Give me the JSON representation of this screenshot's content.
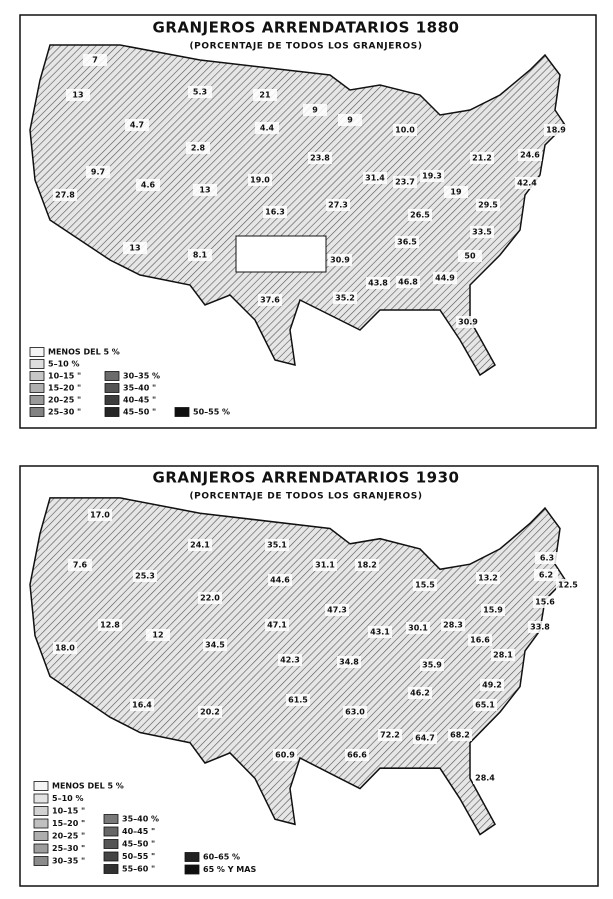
{
  "panels": [
    {
      "title": "GRANJEROS ARRENDATARIOS 1880",
      "subtitle": "(PORCENTAJE DE TODOS LOS GRANJEROS)",
      "legend": [
        "MENOS DEL 5 %",
        "5–10 %",
        "10–15 \"",
        "15–20 \"",
        "20–25 \"",
        "25–30 \"",
        "30–35 %",
        "35–40 \"",
        "40–45 \"",
        "45–50 \"",
        "50–55 %"
      ],
      "labels": [
        "7",
        "13",
        "5.3",
        "21",
        "9",
        "9",
        "4.7",
        "4.4",
        "2.8",
        "10.0",
        "9.7",
        "4.6",
        "13",
        "19.0",
        "23.8",
        "31.4",
        "23.7",
        "19.3",
        "21.2",
        "24.6",
        "42.4",
        "18.9",
        "16.3",
        "27.3",
        "26.5",
        "19",
        "29.5",
        "33.5",
        "36.5",
        "30.9",
        "13",
        "8.1",
        "37.6",
        "35.2",
        "43.8",
        "46.8",
        "44.9",
        "50",
        "30.9",
        "27.8"
      ]
    },
    {
      "title": "GRANJEROS ARRENDATARIOS 1930",
      "subtitle": "(PORCENTAJE DE TODOS LOS GRANJEROS)",
      "legend": [
        "MENOS DEL 5 %",
        "5–10 %",
        "10–15 \"",
        "15–20 \"",
        "20–25 \"",
        "25–30 \"",
        "30–35 \"",
        "35–40 %",
        "40–45 \"",
        "45–50 \"",
        "50–55 \"",
        "55–60 \"",
        "60–65 %",
        "65 % Y MAS"
      ],
      "labels": [
        "17.0",
        "7.6",
        "24.1",
        "35.1",
        "31.1",
        "18.2",
        "25.3",
        "44.6",
        "22.0",
        "15.5",
        "13.2",
        "6.3",
        "6.2",
        "12.5",
        "15.9",
        "15.6",
        "33.8",
        "12.8",
        "12",
        "34.5",
        "47.1",
        "47.3",
        "43.1",
        "30.1",
        "28.3",
        "16.6",
        "28.1",
        "18.0",
        "42.3",
        "34.8",
        "35.9",
        "46.2",
        "49.2",
        "16.4",
        "20.2",
        "61.5",
        "63.0",
        "72.2",
        "64.7",
        "68.2",
        "65.1",
        "60.9",
        "66.6",
        "28.4"
      ]
    }
  ]
}
